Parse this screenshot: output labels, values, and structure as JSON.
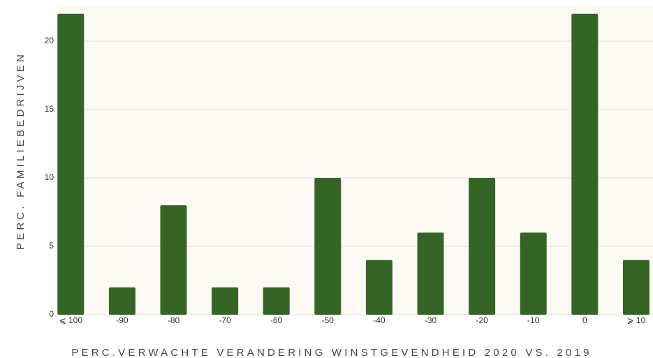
{
  "chart_data": {
    "type": "bar",
    "x_label": "PERC.VERWACHTE VERANDERING WINSTGEVENDHEID 2020 VS. 2019",
    "y_label": "PERC. FAMILIEBEDRIJVEN",
    "categories": [
      "⩽ 100",
      "-90",
      "-80",
      "-70",
      "-60",
      "-50",
      "-40",
      "-30",
      "-20",
      "-10",
      "0",
      "⩾ 10"
    ],
    "values": [
      22,
      2,
      8,
      2,
      2,
      10,
      4,
      6,
      10,
      6,
      22,
      4
    ],
    "color": "#346524",
    "ylim": [
      0,
      22.6
    ],
    "yticks": [
      0,
      5,
      10,
      15,
      20
    ],
    "grid": true
  }
}
